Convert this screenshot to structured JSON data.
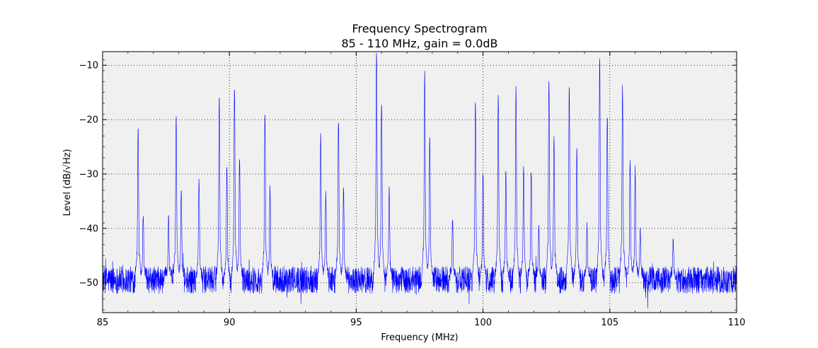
{
  "chart_data": {
    "type": "line",
    "title": "Frequency Spectrogram",
    "subtitle": "85 - 110 MHz, gain = 0.0dB",
    "xlabel": "Frequency (MHz)",
    "ylabel": "Level (dB/√Hz)",
    "xlim": [
      85,
      110
    ],
    "ylim": [
      -55.5,
      -7.5
    ],
    "xticks": [
      85,
      90,
      95,
      100,
      105,
      110
    ],
    "yticks": [
      -50,
      -40,
      -30,
      -20,
      -10
    ],
    "grid": true,
    "line_color": "#0000ff",
    "plot_background": "#f0f0f0",
    "noise_floor": -49.5,
    "noise_spread": 2.5,
    "series": [
      {
        "peaks": [
          {
            "x": 86.4,
            "y": -22
          },
          {
            "x": 86.6,
            "y": -37.5
          },
          {
            "x": 87.6,
            "y": -38
          },
          {
            "x": 87.9,
            "y": -19
          },
          {
            "x": 88.1,
            "y": -33
          },
          {
            "x": 88.8,
            "y": -31
          },
          {
            "x": 89.6,
            "y": -15.5
          },
          {
            "x": 89.9,
            "y": -29
          },
          {
            "x": 90.2,
            "y": -14
          },
          {
            "x": 90.4,
            "y": -27.5
          },
          {
            "x": 91.4,
            "y": -18.5
          },
          {
            "x": 91.6,
            "y": -32.5
          },
          {
            "x": 93.6,
            "y": -22.5
          },
          {
            "x": 93.8,
            "y": -33.5
          },
          {
            "x": 94.3,
            "y": -20
          },
          {
            "x": 94.5,
            "y": -33
          },
          {
            "x": 95.8,
            "y": -7.5
          },
          {
            "x": 96.0,
            "y": -17
          },
          {
            "x": 96.3,
            "y": -33
          },
          {
            "x": 97.7,
            "y": -11.5
          },
          {
            "x": 97.9,
            "y": -23.5
          },
          {
            "x": 98.8,
            "y": -38
          },
          {
            "x": 99.7,
            "y": -17
          },
          {
            "x": 100.0,
            "y": -29.5
          },
          {
            "x": 100.6,
            "y": -15.5
          },
          {
            "x": 100.9,
            "y": -29
          },
          {
            "x": 101.3,
            "y": -14
          },
          {
            "x": 101.6,
            "y": -28.5
          },
          {
            "x": 101.9,
            "y": -29
          },
          {
            "x": 102.2,
            "y": -40
          },
          {
            "x": 102.6,
            "y": -12.5
          },
          {
            "x": 102.8,
            "y": -23.5
          },
          {
            "x": 103.4,
            "y": -13.5
          },
          {
            "x": 103.7,
            "y": -25.5
          },
          {
            "x": 104.1,
            "y": -39
          },
          {
            "x": 104.6,
            "y": -8.5
          },
          {
            "x": 104.9,
            "y": -19.5
          },
          {
            "x": 105.5,
            "y": -14
          },
          {
            "x": 105.8,
            "y": -28
          },
          {
            "x": 106.0,
            "y": -29
          },
          {
            "x": 106.2,
            "y": -40
          },
          {
            "x": 107.5,
            "y": -42
          }
        ]
      }
    ]
  }
}
